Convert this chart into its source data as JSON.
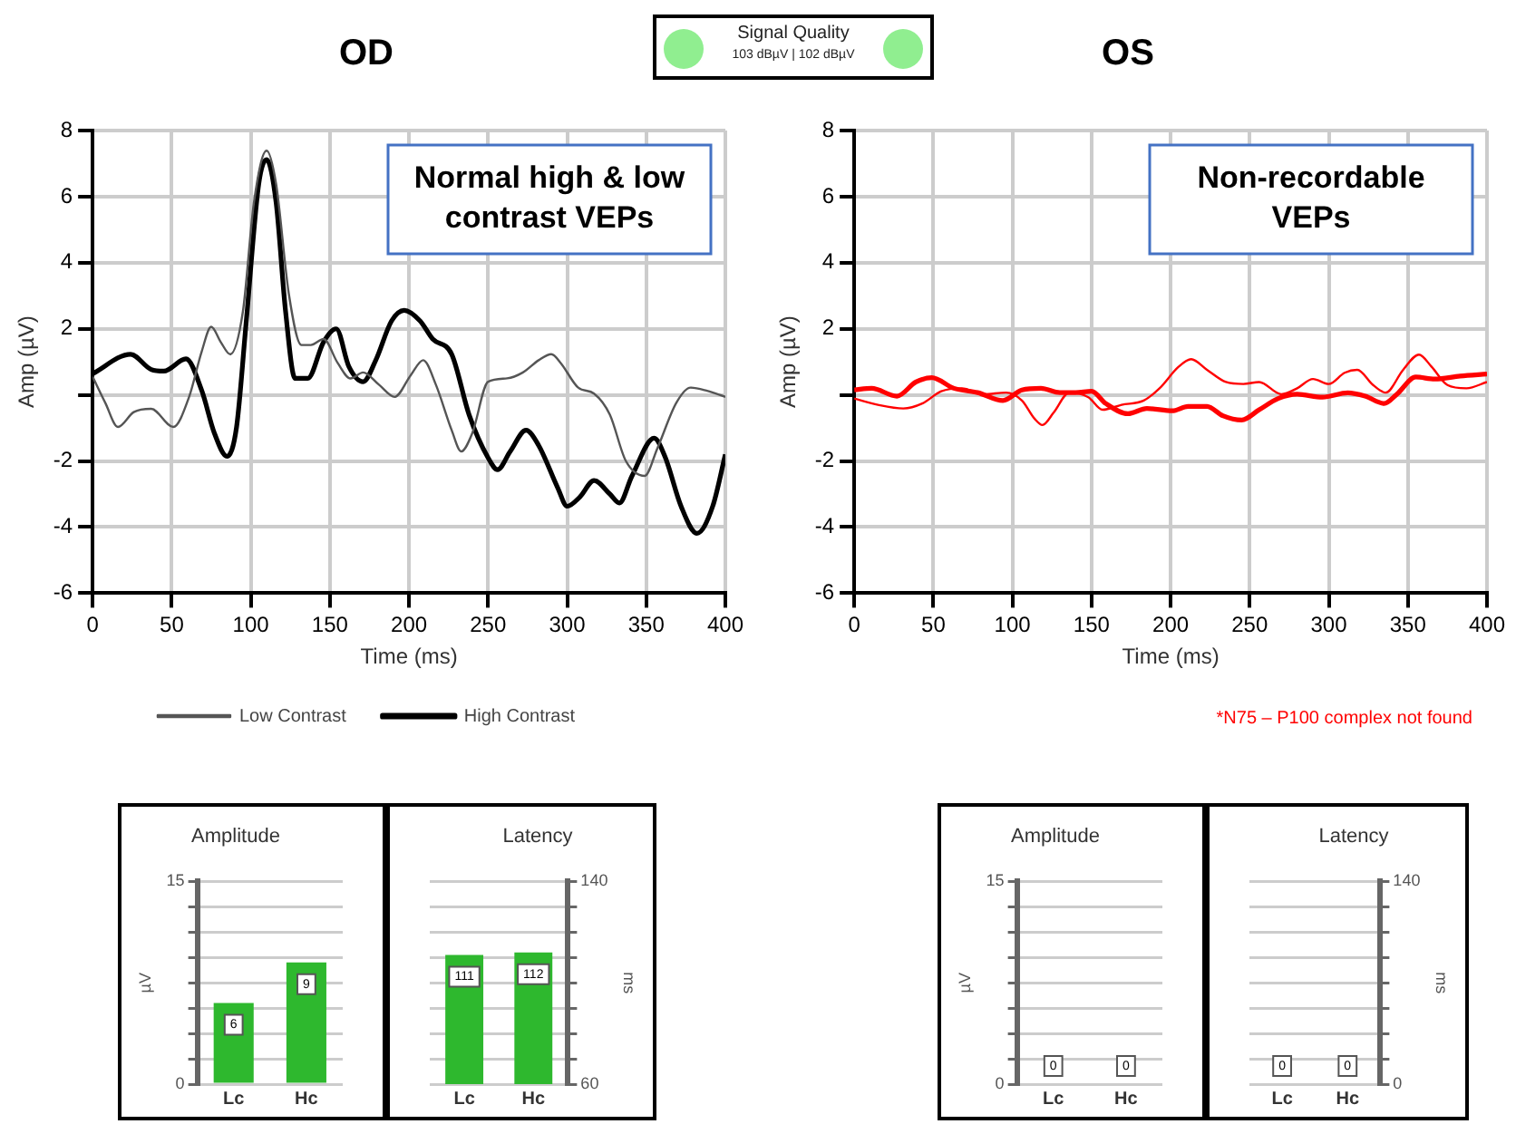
{
  "chart_data": [
    {
      "type": "line",
      "title": "OD",
      "xlabel": "Time (ms)",
      "ylabel": "Amp (µV)",
      "xlim": [
        0,
        400
      ],
      "xticks": [
        0,
        50,
        100,
        150,
        200,
        250,
        300,
        350,
        400
      ],
      "ylim": [
        -6,
        8
      ],
      "yticks": [
        -6,
        -4,
        -2,
        {
          "value": 0,
          "label": null
        },
        2,
        4,
        6,
        8
      ],
      "grid": true,
      "legend": "bottom",
      "marker": "none",
      "annotations": [
        "Normal high & low contrast VEPs"
      ],
      "series": [
        {
          "name": "Low Contrast",
          "color": "#555555",
          "x": [
            0,
            8,
            16,
            26,
            37,
            51,
            61,
            69,
            75,
            81,
            87,
            95,
            102,
            110,
            116,
            124,
            132,
            138,
            146,
            155,
            163,
            171,
            181,
            191,
            201,
            209,
            217,
            227,
            233,
            240,
            250,
            262,
            272,
            282,
            290,
            296,
            307,
            317,
            327,
            337,
            349,
            357,
            369,
            378,
            388,
            400
          ],
          "values": [
            0.55,
            -0.24,
            -0.97,
            -0.52,
            -0.42,
            -0.97,
            -0.06,
            1.32,
            2.06,
            1.6,
            1.23,
            2.52,
            5.83,
            7.39,
            6.38,
            3.07,
            1.51,
            1.51,
            1.69,
            0.96,
            0.5,
            0.68,
            0.31,
            -0.06,
            0.59,
            1.05,
            0.31,
            -1.07,
            -1.71,
            -1.16,
            0.4,
            0.5,
            0.68,
            1.05,
            1.23,
            0.96,
            0.22,
            0.04,
            -0.6,
            -1.99,
            -2.45,
            -1.62,
            -0.24,
            0.22,
            0.13,
            -0.06
          ]
        },
        {
          "name": "High Contrast",
          "color": "#000000",
          "x": [
            0,
            24,
            37,
            45,
            59,
            69,
            77,
            85,
            91,
            97,
            105,
            110,
            116,
            122,
            128,
            136,
            146,
            154,
            162,
            171,
            179,
            189,
            197,
            207,
            215,
            227,
            238,
            250,
            256,
            264,
            274,
            282,
            294,
            300,
            308,
            317,
            327,
            333,
            341,
            355,
            362,
            372,
            382,
            392,
            400
          ],
          "values": [
            0.64,
            1.23,
            0.77,
            0.72,
            1.09,
            0.13,
            -1.16,
            -1.86,
            -0.97,
            2.15,
            6.38,
            7.12,
            5.83,
            2.52,
            0.5,
            0.5,
            1.6,
            2.0,
            0.86,
            0.4,
            1.05,
            2.24,
            2.56,
            2.24,
            1.69,
            1.23,
            -0.6,
            -1.9,
            -2.26,
            -1.71,
            -1.07,
            -1.53,
            -2.81,
            -3.37,
            -3.09,
            -2.59,
            -3.0,
            -3.27,
            -2.45,
            -1.31,
            -1.89,
            -3.37,
            -4.19,
            -3.37,
            -1.8
          ]
        }
      ]
    },
    {
      "type": "other",
      "title": "Signal Quality",
      "annotations": [
        "103 dBµV | 102 dBµV"
      ]
    },
    {
      "type": "line",
      "title": "OS",
      "xlabel": "Time (ms)",
      "ylabel": "Amp (µV)",
      "xlim": [
        0,
        400
      ],
      "xticks": [
        0,
        50,
        100,
        150,
        200,
        250,
        300,
        350,
        400
      ],
      "ylim": [
        -6,
        8
      ],
      "yticks": [
        -6,
        -4,
        -2,
        {
          "value": 0,
          "label": null
        },
        2,
        4,
        6,
        8
      ],
      "grid": true,
      "marker": "none",
      "annotations": [
        "Non-recordable VEPs",
        "*N75 – P100 complex not found"
      ],
      "series": [
        {
          "color": "#ff0000",
          "x": [
            0,
            15,
            31,
            43,
            55,
            68,
            82,
            96,
            106,
            114,
            119,
            126,
            136,
            148,
            157,
            169,
            183,
            193,
            205,
            213,
            223,
            235,
            246,
            256,
            270,
            280,
            290,
            300,
            310,
            318,
            328,
            336,
            347,
            357,
            365,
            375,
            387,
            400
          ],
          "values": [
            -0.11,
            -0.3,
            -0.41,
            -0.26,
            0.11,
            0.2,
            0.02,
            0.07,
            -0.17,
            -0.72,
            -0.91,
            -0.54,
            0.07,
            -0.07,
            -0.45,
            -0.3,
            -0.17,
            0.2,
            0.85,
            1.08,
            0.76,
            0.39,
            0.33,
            0.39,
            0.02,
            0.2,
            0.48,
            0.33,
            0.67,
            0.76,
            0.3,
            0.07,
            0.76,
            1.22,
            0.85,
            0.3,
            0.2,
            0.39
          ]
        },
        {
          "color": "#ff0000",
          "x": [
            0,
            11,
            27,
            39,
            49,
            63,
            78,
            94,
            106,
            118,
            130,
            140,
            150,
            159,
            173,
            185,
            201,
            211,
            223,
            233,
            245,
            256,
            268,
            280,
            296,
            312,
            323,
            335,
            343,
            355,
            367,
            383,
            400
          ],
          "values": [
            0.15,
            0.2,
            -0.04,
            0.39,
            0.52,
            0.2,
            0.07,
            -0.17,
            0.15,
            0.2,
            0.07,
            0.07,
            0.11,
            -0.26,
            -0.57,
            -0.41,
            -0.48,
            -0.35,
            -0.35,
            -0.63,
            -0.76,
            -0.45,
            -0.11,
            0.02,
            -0.07,
            0.06,
            -0.04,
            -0.26,
            0.02,
            0.54,
            0.48,
            0.57,
            0.63
          ]
        }
      ]
    },
    {
      "type": "bar",
      "title": "Amplitude",
      "ylabel": "µV",
      "categories": [
        "Lc",
        "Hc"
      ],
      "ylim": [
        0,
        15
      ],
      "yticks": [
        0,
        {
          "value": 1.875,
          "label": null
        },
        {
          "value": 3.75,
          "label": null
        },
        {
          "value": 5.625,
          "label": null
        },
        {
          "value": 7.5,
          "label": null
        },
        {
          "value": 9.375,
          "label": null
        },
        {
          "value": 11.25,
          "label": null
        },
        {
          "value": 13.125,
          "label": null
        },
        15
      ],
      "grid": "y",
      "data_labels": true,
      "series": [
        {
          "color": "#2eb82e",
          "values": [
            6,
            9
          ]
        }
      ]
    },
    {
      "type": "bar",
      "title": "Latency",
      "y2label": "ms",
      "categories": [
        "Lc",
        "Hc"
      ],
      "y2lim": [
        60,
        140
      ],
      "y2ticks": [
        60,
        {
          "value": 70,
          "label": null
        },
        {
          "value": 80,
          "label": null
        },
        {
          "value": 90,
          "label": null
        },
        {
          "value": 100,
          "label": null
        },
        {
          "value": 110,
          "label": null
        },
        {
          "value": 120,
          "label": null
        },
        {
          "value": 130,
          "label": null
        },
        140
      ],
      "grid": "y",
      "data_labels": true,
      "series": [
        {
          "color": "#2eb82e",
          "axis": "y2",
          "values": [
            111,
            112
          ]
        }
      ]
    },
    {
      "type": "bar",
      "title": "Amplitude",
      "ylabel": "µV",
      "categories": [
        "Lc",
        "Hc"
      ],
      "ylim": [
        0,
        15
      ],
      "yticks": [
        0,
        {
          "value": 1.875,
          "label": null
        },
        {
          "value": 3.75,
          "label": null
        },
        {
          "value": 5.625,
          "label": null
        },
        {
          "value": 7.5,
          "label": null
        },
        {
          "value": 9.375,
          "label": null
        },
        {
          "value": 11.25,
          "label": null
        },
        {
          "value": 13.125,
          "label": null
        },
        15
      ],
      "grid": "y",
      "data_labels": true,
      "series": [
        {
          "color": "#2eb82e",
          "values": [
            0,
            0
          ]
        }
      ]
    },
    {
      "type": "bar",
      "title": "Latency",
      "y2label": "ms",
      "categories": [
        "Lc",
        "Hc"
      ],
      "y2lim": [
        0,
        140
      ],
      "y2ticks": [
        0,
        {
          "value": 17.5,
          "label": null
        },
        {
          "value": 35,
          "label": null
        },
        {
          "value": 52.5,
          "label": null
        },
        {
          "value": 70,
          "label": null
        },
        {
          "value": 87.5,
          "label": null
        },
        {
          "value": 105,
          "label": null
        },
        {
          "value": 122.5,
          "label": null
        },
        140
      ],
      "grid": "y",
      "data_labels": true,
      "series": [
        {
          "color": "#2eb82e",
          "axis": "y2",
          "values": [
            0,
            0
          ]
        }
      ]
    }
  ]
}
